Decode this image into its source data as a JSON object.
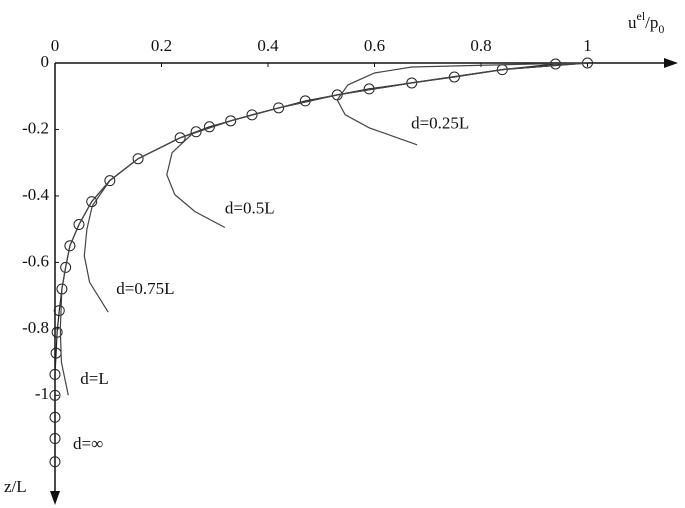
{
  "chart_data": {
    "type": "line",
    "xlabel": {
      "base": "u",
      "sup": "el",
      "mid": "/p",
      "sub": "0"
    },
    "ylabel": "z/L",
    "xlim": [
      0,
      1.17
    ],
    "ylim": [
      -1.33,
      0
    ],
    "xticks": [
      0,
      0.2,
      0.4,
      0.6,
      0.8,
      1
    ],
    "yticks": [
      0,
      -0.2,
      -0.4,
      -0.6,
      -0.8,
      -1
    ],
    "series": [
      {
        "name": "d=∞",
        "color": "#222",
        "marker": "circle",
        "x": [
          1,
          0.94,
          0.84,
          0.75,
          0.67,
          0.59,
          0.53,
          0.47,
          0.42,
          0.37,
          0.33,
          0.29,
          0.265,
          0.235,
          0.156,
          0.103,
          0.069,
          0.045,
          0.028,
          0.02,
          0.013,
          0.008,
          0.004,
          0.002,
          0,
          0,
          0,
          0,
          0
        ],
        "values": [
          0,
          -0.003,
          -0.02,
          -0.042,
          -0.06,
          -0.078,
          -0.096,
          -0.114,
          -0.135,
          -0.156,
          -0.174,
          -0.192,
          -0.207,
          -0.225,
          -0.288,
          -0.354,
          -0.417,
          -0.486,
          -0.55,
          -0.615,
          -0.68,
          -0.745,
          -0.81,
          -0.873,
          -0.937,
          -1.0,
          -1.066,
          -1.13,
          -1.2
        ]
      },
      {
        "name": "d=L",
        "color": "#444",
        "x": [
          1,
          0.84,
          0.67,
          0.53,
          0.42,
          0.33,
          0.235,
          0.156,
          0.103,
          0.069,
          0.045,
          0.028,
          0.02,
          0.013,
          0.01,
          0.012,
          0.025
        ],
        "values": [
          0,
          -0.02,
          -0.06,
          -0.096,
          -0.135,
          -0.174,
          -0.225,
          -0.288,
          -0.354,
          -0.417,
          -0.486,
          -0.55,
          -0.615,
          -0.68,
          -0.8,
          -0.9,
          -1.0
        ]
      },
      {
        "name": "d=0.75L",
        "color": "#444",
        "x": [
          1,
          0.84,
          0.67,
          0.53,
          0.42,
          0.33,
          0.235,
          0.156,
          0.103,
          0.07,
          0.06,
          0.055,
          0.065,
          0.1
        ],
        "values": [
          0,
          -0.02,
          -0.06,
          -0.096,
          -0.135,
          -0.174,
          -0.225,
          -0.288,
          -0.354,
          -0.43,
          -0.5,
          -0.58,
          -0.66,
          -0.75
        ]
      },
      {
        "name": "d=0.5L",
        "color": "#444",
        "x": [
          1,
          0.84,
          0.67,
          0.53,
          0.42,
          0.33,
          0.26,
          0.22,
          0.21,
          0.225,
          0.263,
          0.319
        ],
        "values": [
          0,
          -0.02,
          -0.06,
          -0.096,
          -0.135,
          -0.174,
          -0.21,
          -0.27,
          -0.336,
          -0.396,
          -0.447,
          -0.495
        ]
      },
      {
        "name": "d=0.25L",
        "color": "#444",
        "x": [
          1,
          0.9,
          0.67,
          0.6,
          0.55,
          0.53,
          0.545,
          0.59,
          0.68
        ],
        "values": [
          0,
          -0.003,
          -0.012,
          -0.03,
          -0.066,
          -0.111,
          -0.156,
          -0.195,
          -0.246
        ]
      }
    ]
  }
}
